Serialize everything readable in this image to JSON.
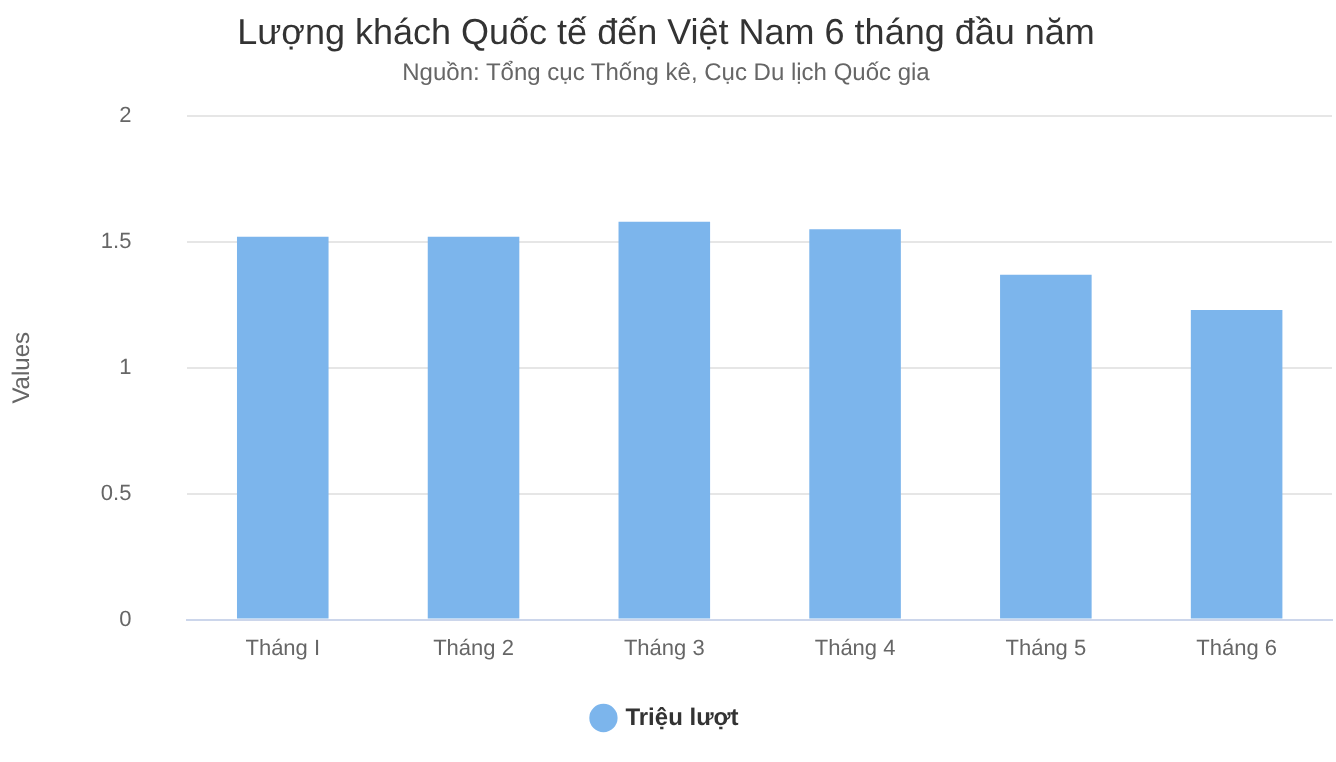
{
  "chart_data": {
    "type": "bar",
    "title": "Lượng khách Quốc tế đến Việt Nam 6 tháng đầu năm",
    "subtitle": "Nguồn: Tổng cục Thống kê, Cục Du lịch Quốc gia",
    "ylabel": "Values",
    "categories": [
      "Tháng I",
      "Tháng 2",
      "Tháng 3",
      "Tháng 4",
      "Tháng 5",
      "Tháng 6"
    ],
    "series": [
      {
        "name": "Triệu lượt",
        "color": "#7cb5ec",
        "values": [
          1.52,
          1.52,
          1.58,
          1.55,
          1.37,
          1.23
        ]
      }
    ],
    "ylim": [
      0,
      2
    ],
    "yticks": [
      0,
      0.5,
      1,
      1.5,
      2
    ],
    "grid": "y",
    "legend": "bottom"
  }
}
